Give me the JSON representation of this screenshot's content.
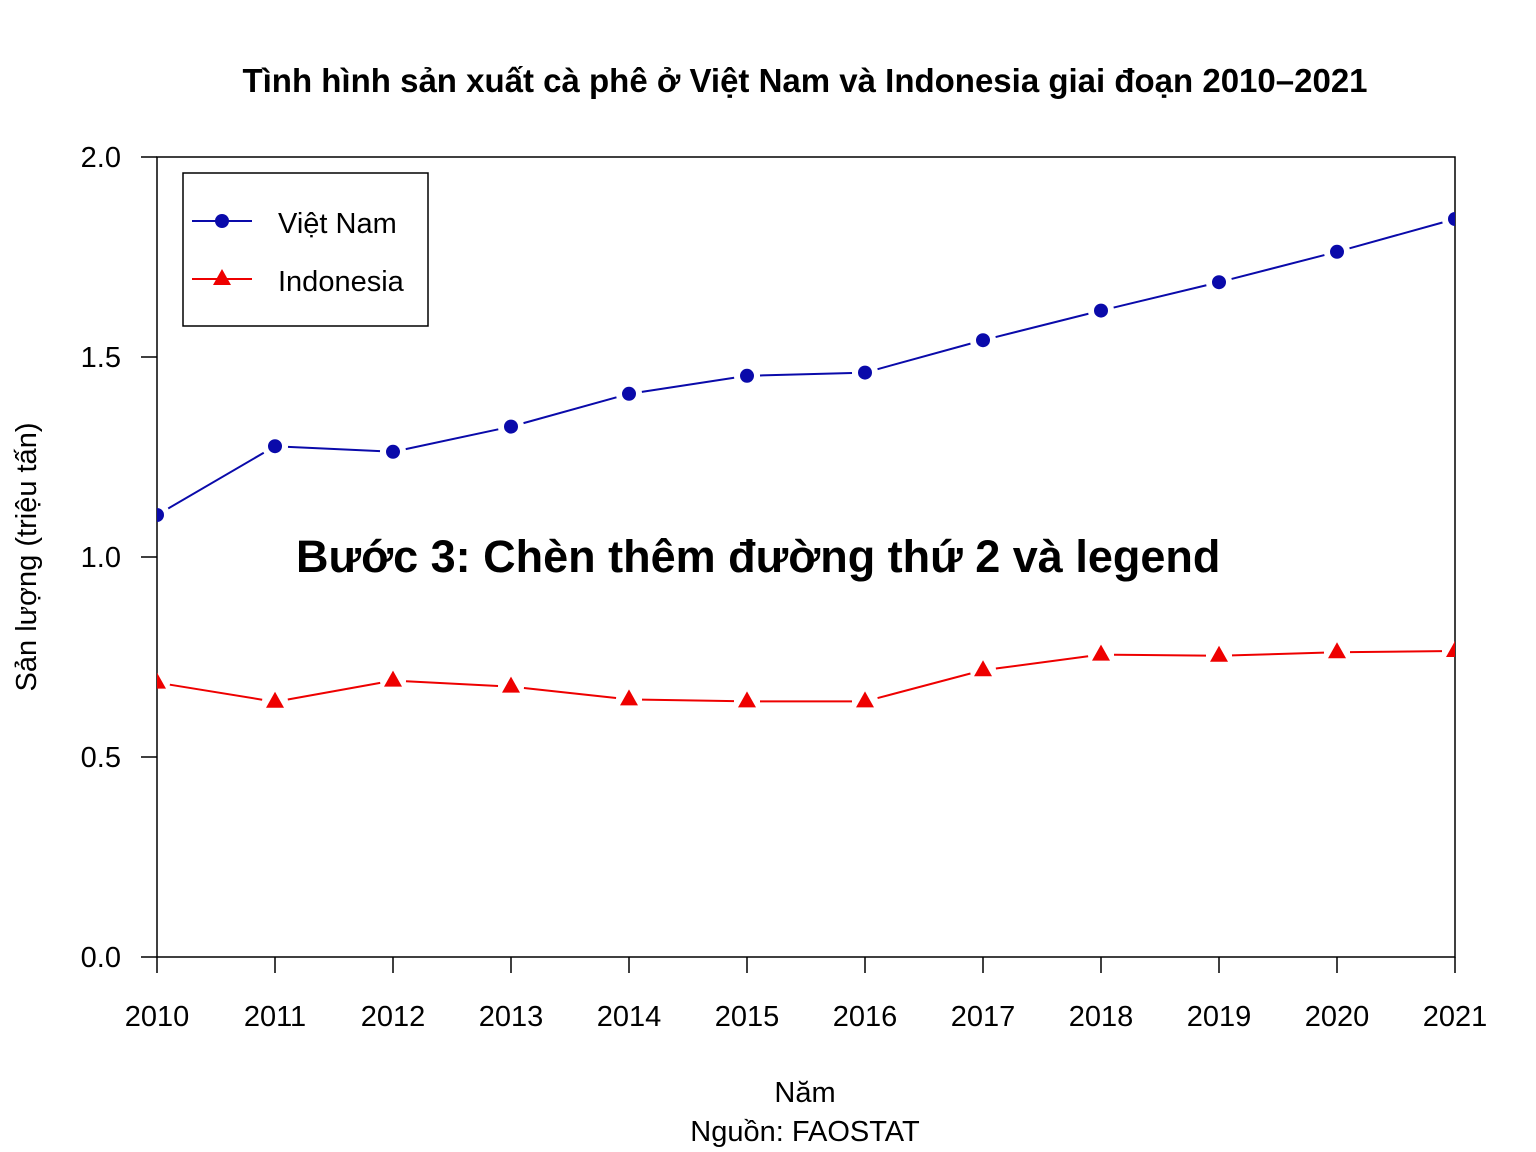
{
  "chart_data": {
    "type": "line",
    "title": "Tình hình sản xuất cà phê ở Việt Nam và Indonesia giai đoạn 2010–2021",
    "xlabel": "Năm",
    "caption": "Nguồn: FAOSTAT",
    "ylabel": "Sản lượng (triệu tấn)",
    "annotation": "Bước 3: Chèn thêm đường thứ 2 và legend",
    "annotation_color": "#f0087a",
    "x": [
      "2010",
      "2011",
      "2012",
      "2013",
      "2014",
      "2015",
      "2016",
      "2017",
      "2018",
      "2019",
      "2020",
      "2021"
    ],
    "xlim": [
      2010,
      2021
    ],
    "ylim": [
      0,
      2
    ],
    "yticks": [
      "0.0",
      "0.5",
      "1.0",
      "1.5",
      "2.0"
    ],
    "grid": false,
    "legend_position": "top-left",
    "series": [
      {
        "name": "Việt Nam",
        "color": "#0a0aaa",
        "marker": "circle",
        "values": [
          1.105,
          1.277,
          1.263,
          1.326,
          1.408,
          1.453,
          1.461,
          1.542,
          1.616,
          1.687,
          1.763,
          1.845
        ]
      },
      {
        "name": "Indonesia",
        "color": "#ee0000",
        "marker": "triangle",
        "values": [
          0.686,
          0.638,
          0.691,
          0.676,
          0.644,
          0.639,
          0.639,
          0.717,
          0.756,
          0.753,
          0.762,
          0.765
        ]
      }
    ]
  }
}
